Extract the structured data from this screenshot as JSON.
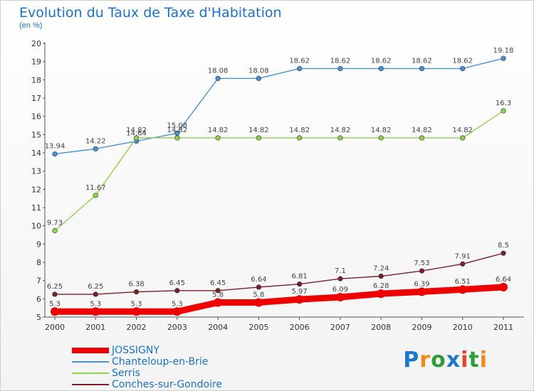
{
  "header": {
    "title": "Evolution du Taux de Taxe d'Habitation",
    "subtitle": "(en %)"
  },
  "brand": {
    "text": "Proxiti",
    "letter_colors": [
      "#1f77c9",
      "#f08a1c",
      "#2e9e3a",
      "#1f77c9",
      "#e8402a",
      "#2e9e3a",
      "#f08a1c"
    ]
  },
  "chart_data": {
    "type": "line",
    "title": "Evolution du Taux de Taxe d'Habitation",
    "subtitle": "(en %)",
    "x": [
      "2000",
      "2001",
      "2002",
      "2003",
      "2004",
      "2005",
      "2006",
      "2007",
      "2008",
      "2009",
      "2010",
      "2011"
    ],
    "ylim": [
      5,
      20
    ],
    "yticks": [
      5,
      6,
      7,
      8,
      9,
      10,
      11,
      12,
      13,
      14,
      15,
      16,
      17,
      18,
      19,
      20
    ],
    "grid": false,
    "legend_position": "bottom-left",
    "series": [
      {
        "name": "JOSSIGNY",
        "color": "#ee0000",
        "values": [
          5.3,
          5.3,
          5.3,
          5.3,
          5.8,
          5.8,
          5.97,
          6.09,
          6.28,
          6.39,
          6.51,
          6.64
        ],
        "labels": [
          "5.3",
          "5.3",
          "5.3",
          "5.3",
          "5.8",
          "5.8",
          "5.97",
          "6.09",
          "6.28",
          "6.39",
          "6.51",
          "6.64"
        ]
      },
      {
        "name": "Chanteloup-en-Brie",
        "color": "#4a90d9",
        "values": [
          13.94,
          14.22,
          14.64,
          15.08,
          18.08,
          18.08,
          18.62,
          18.62,
          18.62,
          18.62,
          18.62,
          19.18
        ],
        "labels": [
          "13.94",
          "14.22",
          "14.64",
          "15.08",
          "18.08",
          "18.08",
          "18.62",
          "18.62",
          "18.62",
          "18.62",
          "18.62",
          "19.18"
        ]
      },
      {
        "name": "Serris",
        "color": "#8ed14a",
        "values": [
          9.73,
          11.67,
          14.82,
          14.82,
          14.82,
          14.82,
          14.82,
          14.82,
          14.82,
          14.82,
          14.82,
          16.3
        ],
        "labels": [
          "9.73",
          "11.67",
          "14.82",
          "14.82",
          "14.82",
          "14.82",
          "14.82",
          "14.82",
          "14.82",
          "14.82",
          "14.82",
          "16.3"
        ]
      },
      {
        "name": "Conches-sur-Gondoire",
        "color": "#7a1f2a",
        "values": [
          6.25,
          6.25,
          6.38,
          6.45,
          6.45,
          6.64,
          6.81,
          7.1,
          7.24,
          7.53,
          7.91,
          8.5
        ],
        "labels": [
          "6.25",
          "6.25",
          "6.38",
          "6.45",
          "6.45",
          "6.64",
          "6.81",
          "7.1",
          "7.24",
          "7.53",
          "7.91",
          "8.5"
        ]
      }
    ]
  }
}
